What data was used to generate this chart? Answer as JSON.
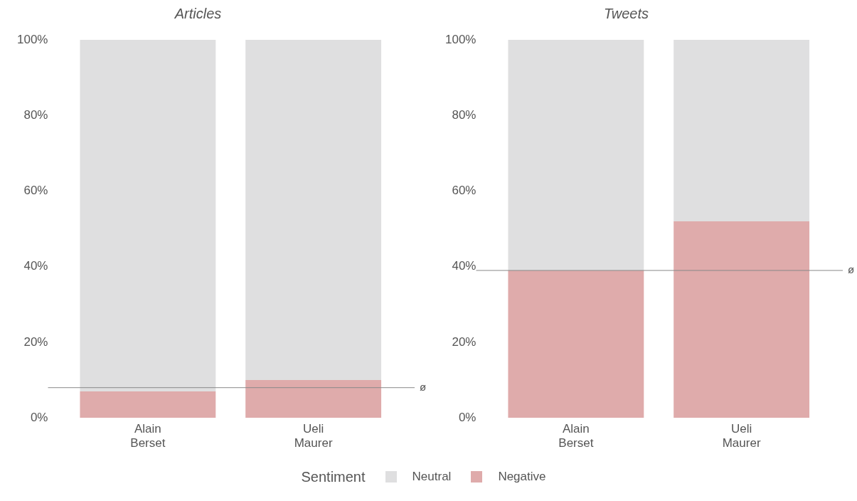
{
  "chart_data": [
    {
      "type": "bar",
      "title": "Articles",
      "categories": [
        "Alain Berset",
        "Ueli Maurer"
      ],
      "stacked": true,
      "legend": "bottom",
      "legend_title": "Sentiment",
      "grid": false,
      "series": [
        {
          "name": "Negative",
          "color": "#dfabab",
          "values": [
            7,
            10
          ]
        },
        {
          "name": "Neutral",
          "color": "#dfdfe0",
          "values": [
            93,
            90
          ]
        }
      ],
      "ylim": [
        0,
        100
      ],
      "yticks": [
        {
          "value": 0,
          "label": "0%"
        },
        {
          "value": 20,
          "label": "20%"
        },
        {
          "value": 40,
          "label": "40%"
        },
        {
          "value": 60,
          "label": "60%"
        },
        {
          "value": 80,
          "label": "80%"
        },
        {
          "value": 100,
          "label": "100%"
        }
      ],
      "ref_lines": [
        {
          "axis": "y",
          "value": 8,
          "label": "ø",
          "color": "#888888"
        }
      ]
    },
    {
      "type": "bar",
      "title": "Tweets",
      "categories": [
        "Alain Berset",
        "Ueli Maurer"
      ],
      "stacked": true,
      "grid": false,
      "series": [
        {
          "color": "#dfabab",
          "values": [
            39,
            52
          ]
        },
        {
          "color": "#dfdfe0",
          "values": [
            61,
            48
          ]
        }
      ],
      "ylim": [
        0,
        100
      ],
      "yticks": [
        {
          "value": 0,
          "label": "0%"
        },
        {
          "value": 20,
          "label": "20%"
        },
        {
          "value": 40,
          "label": "40%"
        },
        {
          "value": 60,
          "label": "60%"
        },
        {
          "value": 80,
          "label": "80%"
        },
        {
          "value": 100,
          "label": "100%"
        }
      ],
      "ref_lines": [
        {
          "axis": "y",
          "value": 39,
          "label": "ø",
          "color": "#888888"
        }
      ]
    }
  ]
}
